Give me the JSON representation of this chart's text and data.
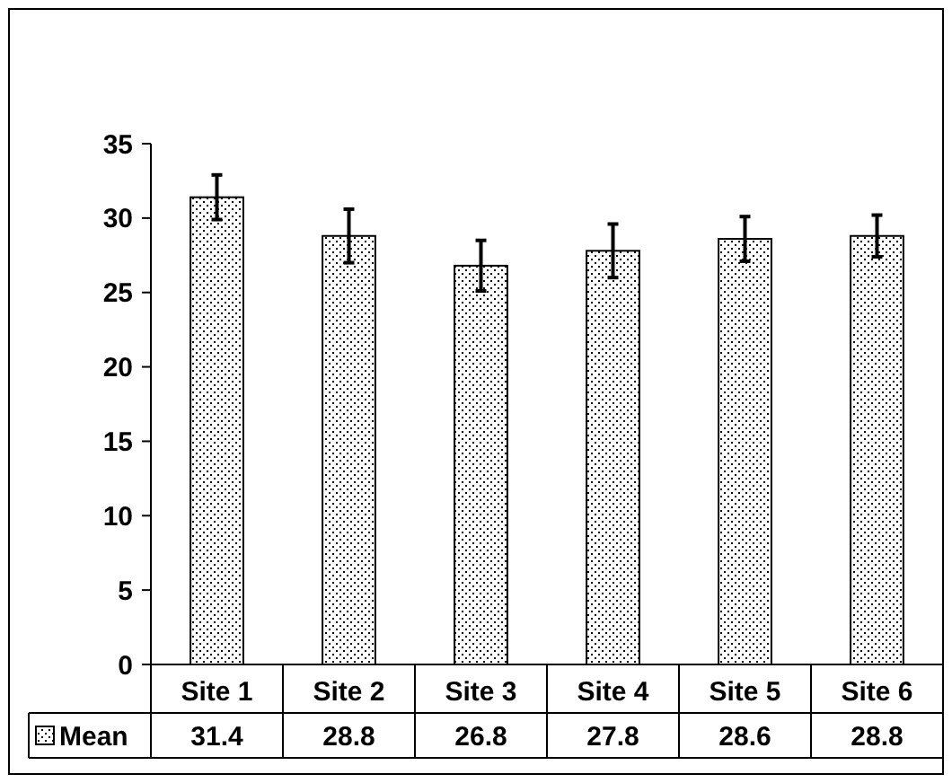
{
  "chart_data": {
    "type": "bar",
    "categories": [
      "Site 1",
      "Site 2",
      "Site 3",
      "Site 4",
      "Site 5",
      "Site 6"
    ],
    "series": [
      {
        "name": "Mean",
        "color": "#000000",
        "values": [
          31.4,
          28.8,
          26.8,
          27.8,
          28.6,
          28.8
        ],
        "errors": [
          1.5,
          1.8,
          1.7,
          1.8,
          1.5,
          1.4
        ]
      }
    ],
    "ylim": [
      0,
      35
    ],
    "yticks": [
      0,
      5,
      10,
      15,
      20,
      25,
      30,
      35
    ],
    "data_labels": true,
    "legend": "bottom",
    "grid": false
  }
}
